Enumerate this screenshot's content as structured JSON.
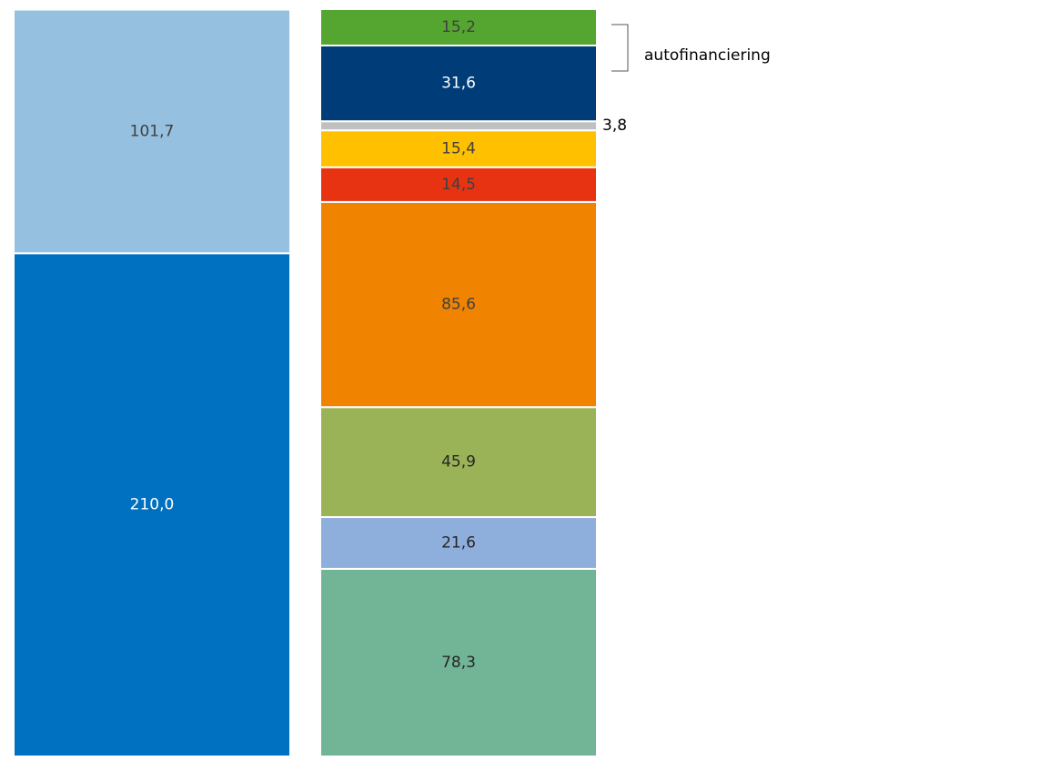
{
  "chart_data": {
    "type": "stacked_column",
    "stacks": [
      {
        "values": [
          210.0,
          101.7
        ],
        "value_labels": [
          "210,0",
          "101,7"
        ],
        "colors": [
          "#0070c0",
          "#95c0df"
        ],
        "label_colors": [
          "#ffffff",
          "#404040"
        ]
      },
      {
        "values": [
          78.3,
          21.6,
          45.9,
          85.6,
          14.5,
          15.4,
          3.8,
          31.6,
          15.2
        ],
        "value_labels": [
          "78,3",
          "21,6",
          "45,9",
          "85,6",
          "14,5",
          "15,4",
          "3,8",
          "31,6",
          "15,2"
        ],
        "colors": [
          "#72b596",
          "#8eaedb",
          "#9bb357",
          "#f08300",
          "#e73312",
          "#ffc000",
          "#c0c0c0",
          "#003d78",
          "#55a630"
        ],
        "label_colors": [
          "#262626",
          "#262626",
          "#262626",
          "#404040",
          "#404040",
          "#404040",
          "#262626",
          "#ffffff",
          "#404040"
        ]
      }
    ],
    "annotation": "autofinanciering"
  }
}
